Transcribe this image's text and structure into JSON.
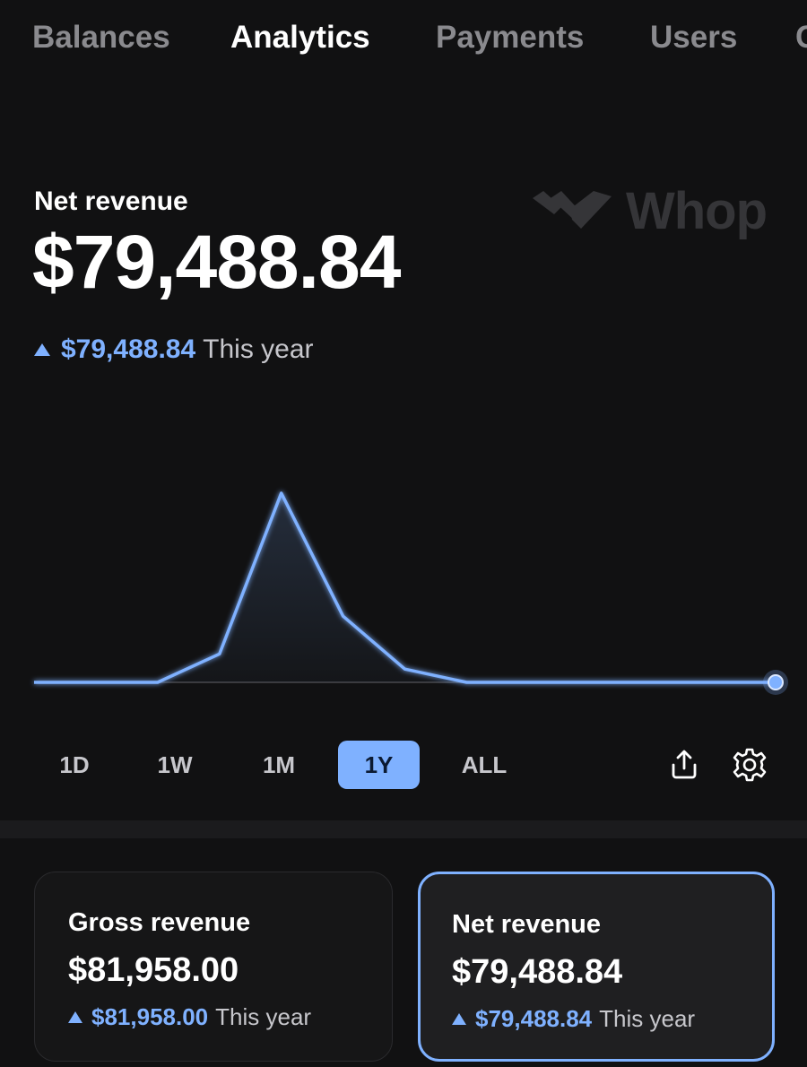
{
  "tabs": [
    {
      "label": "Balances",
      "active": false
    },
    {
      "label": "Analytics",
      "active": true
    },
    {
      "label": "Payments",
      "active": false
    },
    {
      "label": "Users",
      "active": false
    },
    {
      "label": "C",
      "active": false
    }
  ],
  "header": {
    "label": "Net revenue",
    "amount": "$79,488.84",
    "delta_value": "$79,488.84",
    "delta_period": "This year",
    "delta_icon": "triangle-up-icon"
  },
  "watermark": {
    "text": "Whop",
    "icon": "whop-logo-icon"
  },
  "chart_data": {
    "type": "area",
    "title": "",
    "xlabel": "",
    "ylabel": "",
    "x": [
      0,
      1,
      2,
      3,
      4,
      5,
      6,
      7,
      8,
      9,
      10,
      11,
      12
    ],
    "series": [
      {
        "values": [
          0,
          0,
          0,
          0.15,
          1.0,
          0.35,
          0.07,
          0,
          0,
          0,
          0,
          0,
          0
        ]
      }
    ],
    "ylim": [
      0,
      1
    ],
    "grid": false,
    "color": "#7fb1ff"
  },
  "ranges": [
    {
      "label": "1D",
      "active": false
    },
    {
      "label": "1W",
      "active": false
    },
    {
      "label": "1M",
      "active": false
    },
    {
      "label": "1Y",
      "active": true
    },
    {
      "label": "ALL",
      "active": false
    }
  ],
  "actions": {
    "share_icon": "share-icon",
    "settings_icon": "gear-icon"
  },
  "cards": {
    "gross": {
      "label": "Gross revenue",
      "amount": "$81,958.00",
      "delta_value": "$81,958.00",
      "delta_period": "This year"
    },
    "net": {
      "label": "Net revenue",
      "amount": "$79,488.84",
      "delta_value": "$79,488.84",
      "delta_period": "This year",
      "selected": true
    }
  },
  "colors": {
    "accent": "#7fb1ff",
    "background": "#111112",
    "muted": "#8a8a8e"
  }
}
